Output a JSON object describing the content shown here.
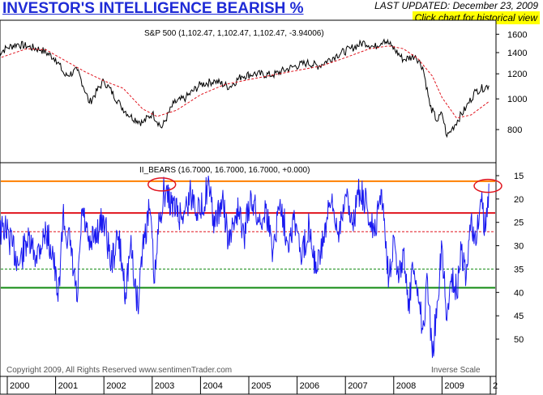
{
  "header": {
    "title": "INVESTOR'S INTELLIGENCE BEARISH %",
    "last_updated": "LAST UPDATED:  December 23, 2009",
    "historical_link": "Click chart for historical view"
  },
  "footer": {
    "copyright": "Copyright 2009, All Rights Reserved  www.sentimenTrader.com",
    "inverse_scale": "Inverse Scale"
  },
  "colors": {
    "sp500_line": "#000000",
    "sp500_ma": "#e0141e",
    "bears_line": "#1a1af0",
    "upper_threshold": "#ff7f00",
    "red_level": "#e0141e",
    "green_level": "#108a10",
    "highlight_circle": "#e0141e"
  },
  "chart_data": [
    {
      "type": "line",
      "title": "S&P 500 (1,102.47, 1,102.47, 1,102.47, -3.94006)",
      "y_scale": "log",
      "ylim": [
        640,
        1720
      ],
      "y_ticks": [
        800,
        1000,
        1200,
        1400,
        1600
      ],
      "series": [
        {
          "name": "S&P 500",
          "style": "solid",
          "x": [
            1999.8,
            2000.0,
            2000.2,
            2000.45,
            2000.7,
            2001.0,
            2001.2,
            2001.45,
            2001.7,
            2002.0,
            2002.35,
            2002.55,
            2002.8,
            2003.0,
            2003.2,
            2003.45,
            2003.7,
            2004.0,
            2004.3,
            2004.6,
            2004.85,
            2005.1,
            2005.5,
            2005.9,
            2006.2,
            2006.45,
            2006.8,
            2007.1,
            2007.4,
            2007.6,
            2007.8,
            2007.95,
            2008.2,
            2008.45,
            2008.6,
            2008.75,
            2008.9,
            2009.0,
            2009.1,
            2009.2,
            2009.5,
            2009.7,
            2009.97
          ],
          "values": [
            1390,
            1450,
            1490,
            1460,
            1430,
            1340,
            1180,
            1230,
            970,
            1140,
            950,
            880,
            840,
            900,
            810,
            970,
            1010,
            1110,
            1140,
            1090,
            1180,
            1200,
            1190,
            1260,
            1300,
            1270,
            1370,
            1440,
            1510,
            1455,
            1540,
            1470,
            1330,
            1370,
            1260,
            950,
            850,
            900,
            760,
            800,
            940,
            1060,
            1102
          ]
        },
        {
          "name": "Moving average",
          "style": "dashed",
          "x": [
            1999.8,
            2000.4,
            2000.8,
            2001.2,
            2001.6,
            2002.0,
            2002.4,
            2002.8,
            2003.1,
            2003.5,
            2004.0,
            2004.5,
            2005.0,
            2005.5,
            2006.0,
            2006.5,
            2007.0,
            2007.5,
            2007.9,
            2008.2,
            2008.5,
            2008.8,
            2009.0,
            2009.3,
            2009.6,
            2009.97
          ],
          "values": [
            1340,
            1440,
            1430,
            1320,
            1220,
            1140,
            1080,
            930,
            880,
            920,
            1030,
            1110,
            1150,
            1190,
            1230,
            1270,
            1350,
            1440,
            1470,
            1440,
            1340,
            1180,
            1010,
            870,
            890,
            980
          ]
        }
      ]
    },
    {
      "type": "line",
      "title": "II_BEARS (16.7000, 16.7000, 16.7000, +0.000)",
      "y_scale": "inverse",
      "ylim": [
        56,
        13
      ],
      "y_ticks": [
        15,
        20,
        25,
        30,
        35,
        40,
        45,
        50
      ],
      "x_ticks": [
        "2000",
        "2001",
        "2002",
        "2003",
        "2004",
        "2005",
        "2006",
        "2007",
        "2008",
        "2009",
        "2"
      ],
      "reference_lines": [
        {
          "value": 16.2,
          "style": "solid",
          "color": "#ff7f00"
        },
        {
          "value": 23.0,
          "style": "solid",
          "color": "#e0141e"
        },
        {
          "value": 27.0,
          "style": "dashed",
          "color": "#e0141e"
        },
        {
          "value": 35.0,
          "style": "dashed",
          "color": "#108a10"
        },
        {
          "value": 39.0,
          "style": "solid",
          "color": "#108a10"
        }
      ],
      "highlights": [
        {
          "x": 2003.2,
          "y": 16.2
        },
        {
          "x": 2009.95,
          "y": 16.5
        }
      ],
      "series": [
        {
          "name": "II_BEARS",
          "style": "solid",
          "x": [
            1999.8,
            1999.95,
            2000.1,
            2000.25,
            2000.4,
            2000.6,
            2000.8,
            2000.95,
            2001.05,
            2001.15,
            2001.3,
            2001.45,
            2001.55,
            2001.7,
            2001.8,
            2002.0,
            2002.15,
            2002.3,
            2002.45,
            2002.55,
            2002.7,
            2002.8,
            2002.95,
            2003.05,
            2003.15,
            2003.25,
            2003.4,
            2003.6,
            2003.8,
            2004.0,
            2004.15,
            2004.3,
            2004.45,
            2004.6,
            2004.75,
            2004.9,
            2005.05,
            2005.2,
            2005.35,
            2005.5,
            2005.65,
            2005.8,
            2005.95,
            2006.1,
            2006.25,
            2006.4,
            2006.55,
            2006.7,
            2006.85,
            2007.0,
            2007.15,
            2007.3,
            2007.45,
            2007.6,
            2007.75,
            2007.9,
            2008.0,
            2008.1,
            2008.2,
            2008.3,
            2008.4,
            2008.5,
            2008.6,
            2008.7,
            2008.8,
            2008.9,
            2009.0,
            2009.1,
            2009.2,
            2009.3,
            2009.4,
            2009.5,
            2009.6,
            2009.7,
            2009.8,
            2009.9,
            2009.97
          ],
          "values": [
            28,
            26,
            30,
            34,
            29,
            32,
            27,
            32,
            42,
            24,
            30,
            42,
            22,
            31,
            28,
            24,
            34,
            28,
            40,
            30,
            43,
            30,
            22,
            38,
            24,
            18,
            21,
            24,
            19,
            23,
            17,
            26,
            20,
            30,
            22,
            28,
            19,
            25,
            22,
            31,
            20,
            29,
            24,
            33,
            25,
            36,
            28,
            21,
            27,
            19,
            25,
            18,
            22,
            28,
            18,
            37,
            28,
            38,
            31,
            44,
            35,
            39,
            48,
            37,
            54,
            42,
            30,
            46,
            36,
            40,
            31,
            37,
            24,
            30,
            20,
            27,
            16.7
          ]
        }
      ]
    }
  ]
}
